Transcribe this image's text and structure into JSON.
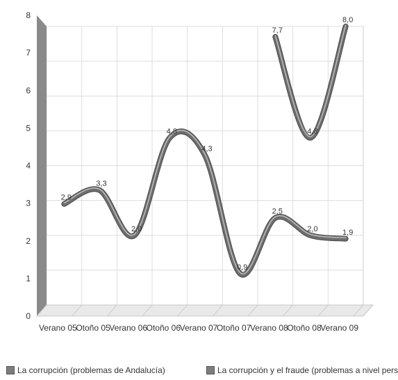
{
  "chart_data": {
    "type": "line",
    "title": "",
    "xlabel": "",
    "ylabel": "",
    "categories": [
      "Verano 05",
      "Otoño 05",
      "Verano 06",
      "Otoño 06",
      "Verano 07",
      "Otoño 07",
      "Verano 08",
      "Otoño 08",
      "Verano 09"
    ],
    "ylim": [
      0,
      8
    ],
    "yticks": [
      "0",
      "1",
      "2",
      "3",
      "4",
      "5",
      "6",
      "7",
      "8"
    ],
    "grid": true,
    "legend_position": "bottom",
    "series": [
      {
        "name": "La corrupción (problemas de Andalucía)",
        "values": [
          2.9,
          3.3,
          2.0,
          4.8,
          4.3,
          0.9,
          2.5,
          2.0,
          1.9
        ],
        "labels": [
          "2,9",
          "3,3",
          "2,0",
          "4,8",
          "4,3",
          "0,9",
          "2,5",
          "2,0",
          "1,9"
        ]
      },
      {
        "name": "La corrupción y el fraude (problemas a nivel personal",
        "values": [
          null,
          null,
          null,
          null,
          null,
          null,
          7.7,
          4.8,
          8.0
        ],
        "labels": [
          null,
          null,
          null,
          null,
          null,
          null,
          "7,7",
          "4,8",
          "8,0"
        ]
      }
    ],
    "colors": {
      "line": "#6e6e6e",
      "line_highlight": "#bdbdbd",
      "grid": "#dddddd",
      "wall_side": "#8a8a8a",
      "floor": "#e9e9e9"
    }
  }
}
